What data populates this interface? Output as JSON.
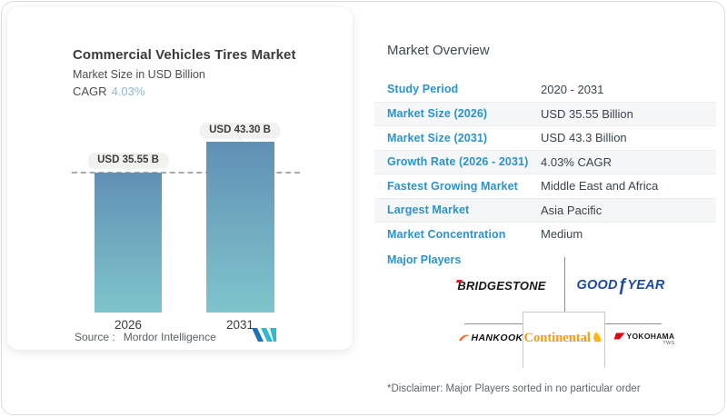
{
  "colors": {
    "accent_blue": "#2b93c9",
    "cagr_light_blue": "#8ab8d8",
    "bar_top": "#6090b5",
    "bar_bottom": "#7ec4cb",
    "goodyear_blue": "#1d4a9b",
    "continental_orange": "#f49c12",
    "bridgestone_red": "#d2232a",
    "yokohama_red": "#e60012",
    "hankook_orange": "#f36f21"
  },
  "left_card": {
    "cagr_label": "CAGR",
    "cagr_value": "4.03%",
    "source_label": "Source :",
    "source_value": "Mordor Intelligence",
    "logo_name": "mordor-intelligence-logo"
  },
  "chart_data": {
    "type": "bar",
    "title": "Commercial Vehicles Tires Market",
    "subtitle": "Market Size in USD Billion",
    "cagr": "4.03%",
    "categories": [
      "2026",
      "2031"
    ],
    "values": [
      35.55,
      43.3
    ],
    "bar_labels": [
      "USD 35.55 B",
      "USD 43.30 B"
    ],
    "unit": "USD Billion",
    "reference_line_value": 35.55,
    "reference_line_style": "dashed",
    "legend": "none",
    "gridlines": "off"
  },
  "overview": {
    "heading": "Market Overview",
    "rows": [
      {
        "label": "Study Period",
        "value": "2020 - 2031"
      },
      {
        "label": "Market Size (2026)",
        "value": "USD 35.55 Billion"
      },
      {
        "label": "Market Size (2031)",
        "value": "USD 43.3 Billion"
      },
      {
        "label": "Growth Rate (2026 - 2031)",
        "value": "4.03% CAGR"
      },
      {
        "label": "Fastest Growing Market",
        "value": "Middle East and Africa"
      },
      {
        "label": "Largest Market",
        "value": "Asia Pacific"
      },
      {
        "label": "Market Concentration",
        "value": "Medium"
      }
    ],
    "major_players_label": "Major Players",
    "major_players": [
      "Bridgestone",
      "Goodyear",
      "Hankook",
      "Continental",
      "Yokohama"
    ],
    "wordmarks": {
      "bridgestone_first": "B",
      "bridgestone_rest": "RIDGESTONE",
      "goodyear_left": "GOOD",
      "goodyear_foot": "ƒ",
      "goodyear_right": "YEAR",
      "hankook": "HANKOOK",
      "continental": "Continental",
      "continental_horse": "♞",
      "yokohama": "YOKOHAMA",
      "yokohama_sub": "TWS"
    },
    "disclaimer": "*Disclaimer: Major Players sorted in no particular order"
  }
}
